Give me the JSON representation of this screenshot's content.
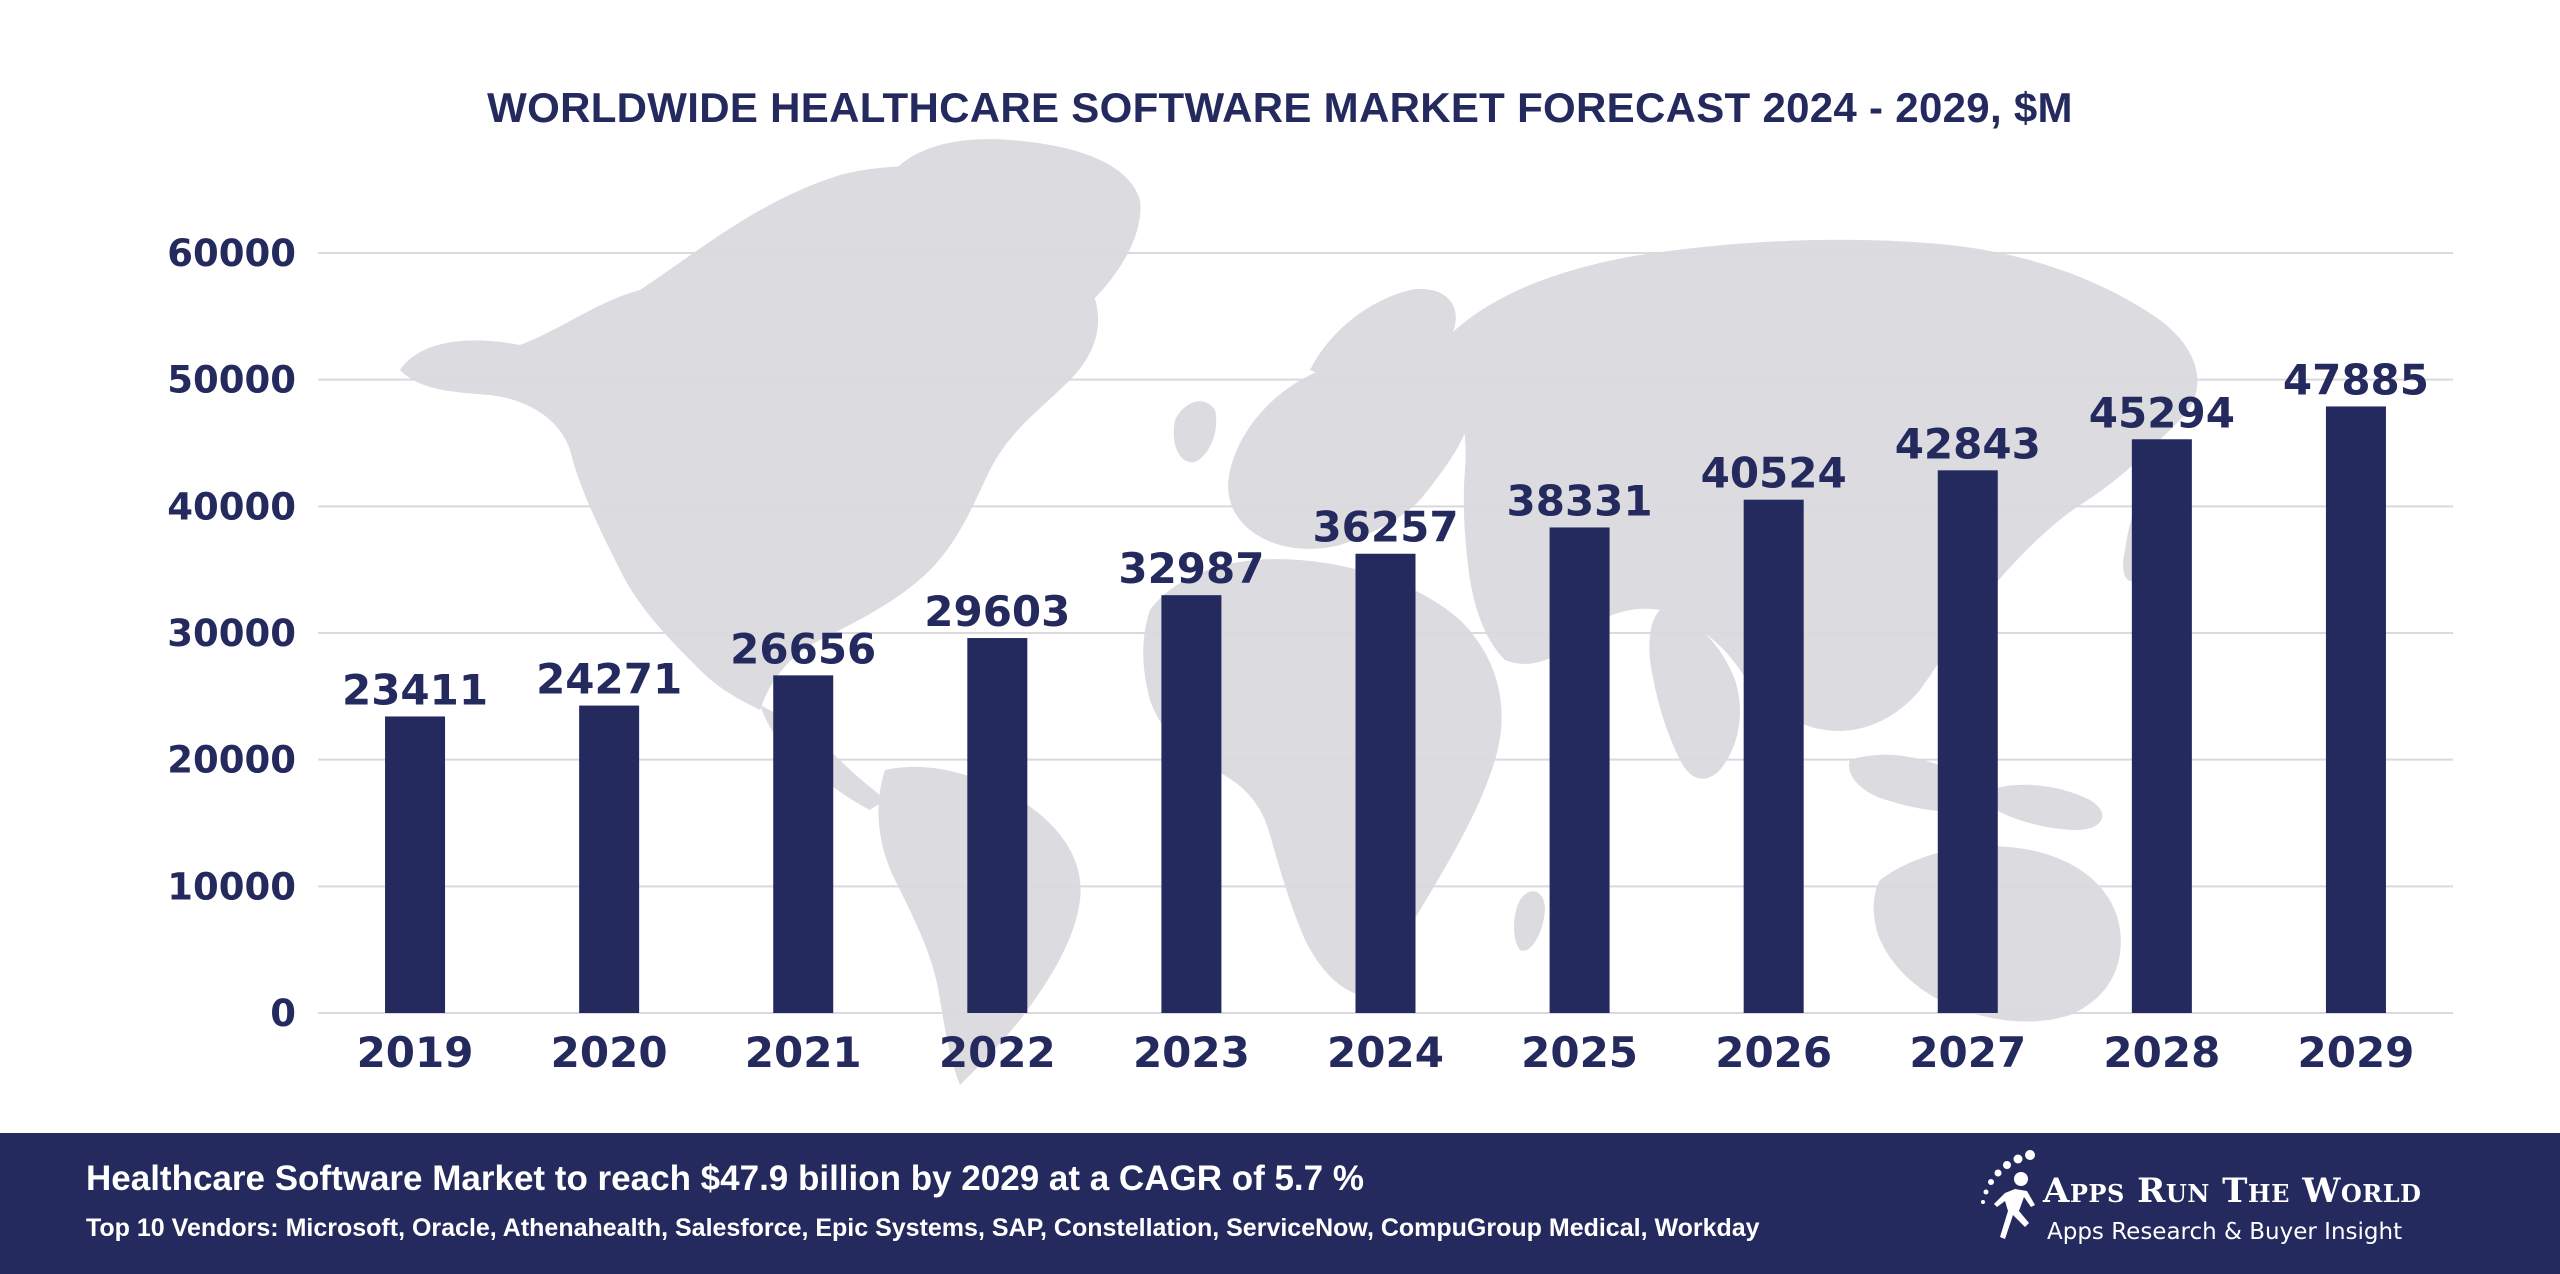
{
  "chart_data": {
    "type": "bar",
    "title": "WORLDWIDE HEALTHCARE SOFTWARE MARKET FORECAST 2024 - 2029, $M",
    "categories": [
      "2019",
      "2020",
      "2021",
      "2022",
      "2023",
      "2024",
      "2025",
      "2026",
      "2027",
      "2028",
      "2029"
    ],
    "values": [
      23411,
      24271,
      26656,
      29603,
      32987,
      36257,
      38331,
      40524,
      42843,
      45294,
      47885
    ],
    "y_ticks": [
      "0",
      "10000",
      "20000",
      "30000",
      "40000",
      "50000",
      "60000"
    ],
    "ylim": [
      0,
      60000
    ],
    "grid": true,
    "xlabel": "",
    "ylabel": "",
    "background": "world map (light grey)",
    "colors": {
      "bar": "#242a5e",
      "text": "#242a5e",
      "grid": "#d9d9de",
      "map": "#dcdbe0"
    }
  },
  "footer": {
    "headline": "Healthcare Software Market to reach $47.9 billion by 2029 at a CAGR of 5.7 %",
    "vendors": "Top 10 Vendors: Microsoft, Oracle, Athenahealth, Salesforce, Epic Systems, SAP, Constellation, ServiceNow, CompuGroup Medical, Workday",
    "background_color": "#242a5e"
  },
  "logo": {
    "name": "Apps Run The World",
    "tagline": "Apps Research & Buyer Insight",
    "icon": "running-figure-logo-icon"
  }
}
